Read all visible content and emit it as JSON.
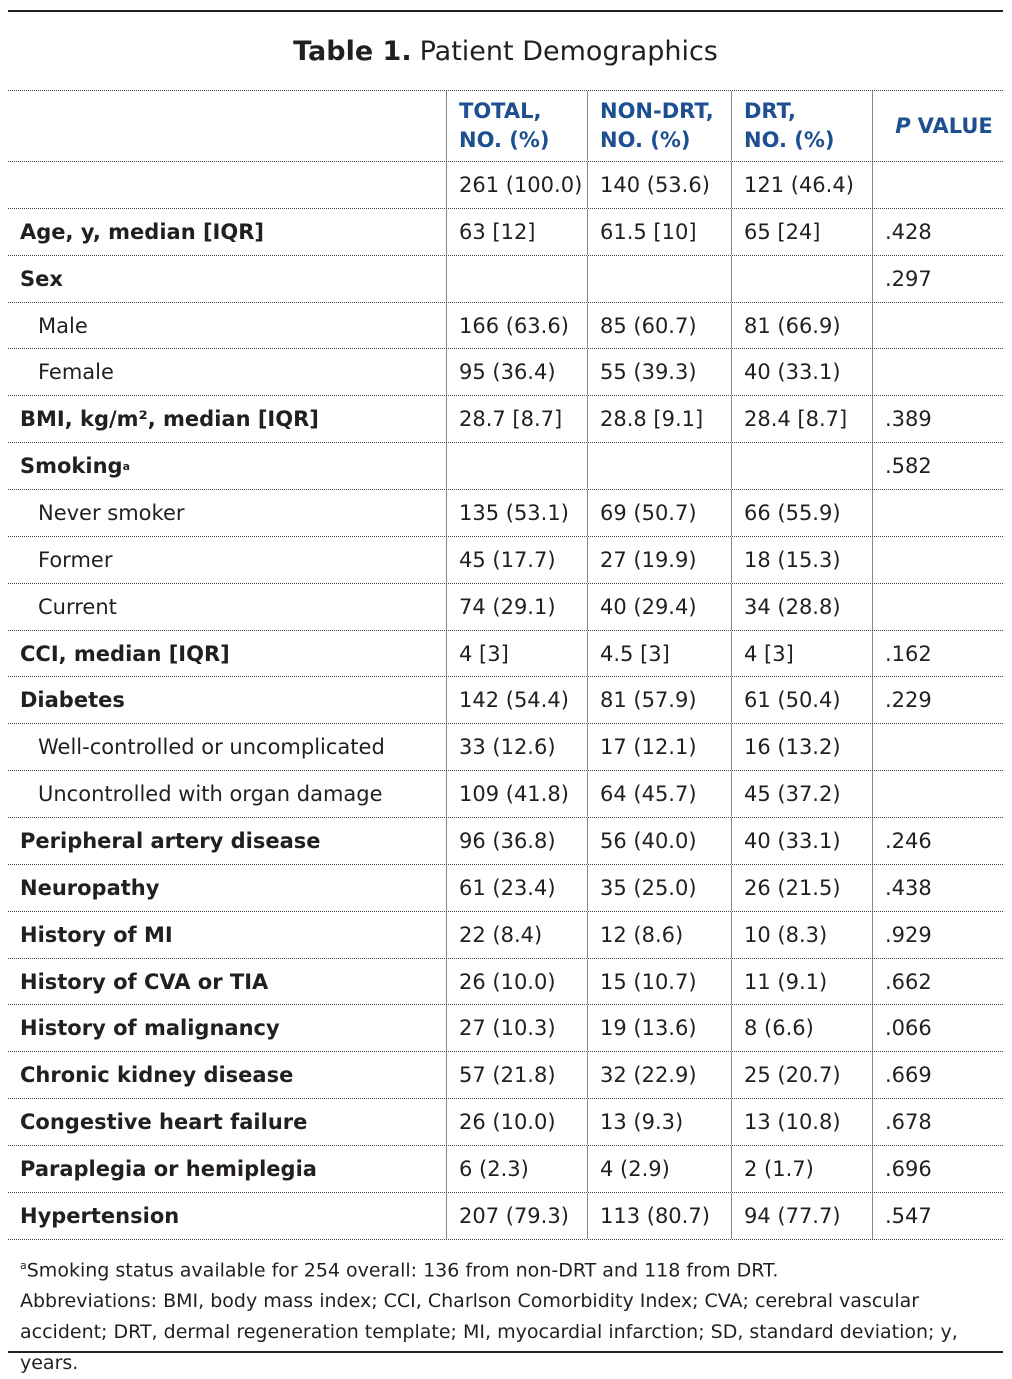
{
  "title": {
    "label": "Table 1.",
    "text": "Patient Demographics"
  },
  "table": {
    "header": [
      [
        "TOTAL,",
        "NO. (%)"
      ],
      [
        "NON-DRT,",
        "NO. (%)"
      ],
      [
        "DRT,",
        "NO. (%)"
      ]
    ],
    "p_header": [
      "P",
      "VALUE"
    ],
    "counts": [
      "261 (100.0)",
      "140 (53.6)",
      "121 (46.4)"
    ],
    "rows": [
      {
        "label": "Age, y, median [IQR]",
        "values": [
          "63 [12]",
          "61.5 [10]",
          "65 [24]"
        ],
        "p": ".428"
      },
      {
        "label": "Sex",
        "p": ".297",
        "subrows": [
          {
            "label": "Male",
            "values": [
              "166 (63.6)",
              "85 (60.7)",
              "81 (66.9)"
            ]
          },
          {
            "label": "Female",
            "values": [
              "95 (36.4)",
              "55 (39.3)",
              "40 (33.1)"
            ]
          }
        ]
      },
      {
        "label": "BMI, kg/m², median [IQR]",
        "values": [
          "28.7 [8.7]",
          "28.8 [9.1]",
          "28.4 [8.7]"
        ],
        "p": ".389"
      },
      {
        "label": "Smoking",
        "note": "a",
        "p": ".582",
        "subrows": [
          {
            "label": "Never smoker",
            "values": [
              "135 (53.1)",
              "69 (50.7)",
              "66 (55.9)"
            ]
          },
          {
            "label": "Former",
            "values": [
              "45 (17.7)",
              "27 (19.9)",
              "18 (15.3)"
            ]
          },
          {
            "label": "Current",
            "values": [
              "74 (29.1)",
              "40 (29.4)",
              "34 (28.8)"
            ]
          }
        ]
      },
      {
        "label": "CCI, median [IQR]",
        "values": [
          "4 [3]",
          "4.5 [3]",
          "4 [3]"
        ],
        "p": ".162"
      },
      {
        "label": "Diabetes",
        "values": [
          "142 (54.4)",
          "81 (57.9)",
          "61 (50.4)"
        ],
        "p": ".229",
        "subrows": [
          {
            "label": "Well-controlled or uncomplicated",
            "values": [
              "33 (12.6)",
              "17 (12.1)",
              "16 (13.2)"
            ]
          },
          {
            "label": "Uncontrolled with organ damage",
            "values": [
              "109 (41.8)",
              "64 (45.7)",
              "45 (37.2)"
            ]
          }
        ]
      },
      {
        "label": "Peripheral artery disease",
        "values": [
          "96 (36.8)",
          "56 (40.0)",
          "40 (33.1)"
        ],
        "p": ".246"
      },
      {
        "label": "Neuropathy",
        "values": [
          "61 (23.4)",
          "35 (25.0)",
          "26 (21.5)"
        ],
        "p": ".438"
      },
      {
        "label": "History of MI",
        "values": [
          "22 (8.4)",
          "12 (8.6)",
          "10 (8.3)"
        ],
        "p": ".929"
      },
      {
        "label": "History of CVA or TIA",
        "values": [
          "26 (10.0)",
          "15 (10.7)",
          "11 (9.1)"
        ],
        "p": ".662"
      },
      {
        "label": "History of malignancy",
        "values": [
          "27 (10.3)",
          "19 (13.6)",
          "8 (6.6)"
        ],
        "p": ".066"
      },
      {
        "label": "Chronic kidney disease",
        "values": [
          "57 (21.8)",
          "32 (22.9)",
          "25 (20.7)"
        ],
        "p": ".669"
      },
      {
        "label": "Congestive heart failure",
        "values": [
          "26 (10.0)",
          "13 (9.3)",
          "13 (10.8)"
        ],
        "p": ".678"
      },
      {
        "label": "Paraplegia or hemiplegia",
        "values": [
          "6 (2.3)",
          "4 (2.9)",
          "2 (1.7)"
        ],
        "p": ".696"
      },
      {
        "label": "Hypertension",
        "values": [
          "207 (79.3)",
          "113 (80.7)",
          "94 (77.7)"
        ],
        "p": ".547"
      }
    ]
  },
  "footnotes": [
    {
      "marker": "a",
      "text": "Smoking status available for 254 overall: 136 from non-DRT and 118 from DRT."
    }
  ],
  "abbreviations": "Abbreviations: BMI, body mass index; CCI, Charlson Comorbidity Index; CVA; cerebral vascular accident; DRT, dermal regeneration template; MI, myocardial infarction; SD, standard deviation; y, years."
}
